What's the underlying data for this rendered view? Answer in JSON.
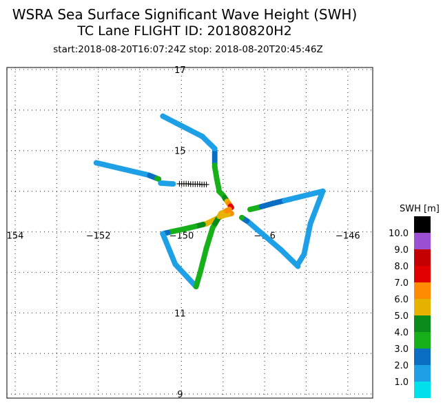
{
  "chart_data": {
    "type": "scatter",
    "title": "WSRA Sea Surface Significant Wave Height (SWH)",
    "subtitle": "TC Lane FLIGHT ID: 20180820H2",
    "time_range": "start:2018-08-20T16:07:24Z  stop: 2018-08-20T20:45:46Z",
    "xlabel": "",
    "ylabel": "",
    "xlim": [
      -154.2,
      -145.4
    ],
    "ylim": [
      8.9,
      17.05
    ],
    "grid": true,
    "x_ticks": [
      {
        "value": -154,
        "label": "154"
      },
      {
        "value": -152,
        "label": "−152"
      },
      {
        "value": -150,
        "label": "−150"
      },
      {
        "value": -148,
        "label": "−1 6"
      },
      {
        "value": -146,
        "label": "−146"
      }
    ],
    "y_ticks": [
      {
        "value": 17,
        "label": "17"
      },
      {
        "value": 15,
        "label": "15"
      },
      {
        "value": 11,
        "label": "11"
      },
      {
        "value": 9,
        "label": "9"
      }
    ],
    "colorbar": {
      "label": "SWH [m]",
      "min": 0,
      "max": 11,
      "ticks": [
        "1.0",
        "2.0",
        "3.0",
        "4.0",
        "5.0",
        "6.0",
        "7.0",
        "8.0",
        "9.0",
        "10.0"
      ],
      "colors": [
        "#00e0ea",
        "#1ea0e6",
        "#0a6ec2",
        "#18b01a",
        "#0a8c1a",
        "#e6b400",
        "#ff8c00",
        "#e00000",
        "#c40000",
        "#9a50d0",
        "#000000"
      ]
    },
    "no_data_marker": "+",
    "tracks": [
      {
        "points": [
          [
            -149.2,
            15.0
          ],
          [
            -149.2,
            14.6
          ],
          [
            -149.15,
            14.3
          ],
          [
            -149.1,
            14.05
          ]
        ],
        "values": [
          1.9,
          3.2,
          3.6,
          3.4
        ]
      },
      {
        "points": [
          [
            -150.45,
            15.85
          ],
          [
            -149.5,
            15.35
          ],
          [
            -149.2,
            15.05
          ]
        ],
        "values": [
          1.9,
          1.9,
          1.9
        ]
      },
      {
        "points": [
          [
            -149.1,
            14.0
          ],
          [
            -149.0,
            13.9
          ],
          [
            -148.9,
            13.75
          ],
          [
            -148.8,
            13.6
          ]
        ],
        "values": [
          3.4,
          3.5,
          5.2,
          7.5
        ]
      },
      {
        "points": [
          [
            -152.05,
            14.7
          ],
          [
            -150.8,
            14.4
          ],
          [
            -150.55,
            14.3
          ]
        ],
        "values": [
          1.9,
          1.9,
          3.3
        ]
      },
      {
        "points": [
          [
            -150.5,
            14.2
          ],
          [
            -150.2,
            14.18
          ]
        ],
        "values": [
          1.9,
          1.9
        ]
      },
      {
        "points": [
          [
            -148.35,
            13.55
          ],
          [
            -148.15,
            13.6
          ],
          [
            -147.8,
            13.7
          ],
          [
            -147.4,
            13.8
          ],
          [
            -146.8,
            13.95
          ],
          [
            -146.6,
            14.0
          ],
          [
            -146.9,
            13.2
          ],
          [
            -147.05,
            12.45
          ],
          [
            -147.2,
            12.2
          ]
        ],
        "values": [
          3.3,
          3.1,
          2.2,
          1.9,
          1.9,
          1.2,
          1.2,
          1.2,
          1.9
        ]
      },
      {
        "points": [
          [
            -147.2,
            12.15
          ],
          [
            -147.6,
            12.55
          ],
          [
            -148.0,
            12.9
          ],
          [
            -148.4,
            13.25
          ],
          [
            -148.55,
            13.35
          ]
        ],
        "values": [
          1.9,
          1.9,
          1.9,
          1.9,
          3.2
        ]
      },
      {
        "points": [
          [
            -148.8,
            13.45
          ],
          [
            -149.0,
            13.4
          ],
          [
            -149.4,
            13.2
          ],
          [
            -149.8,
            13.1
          ],
          [
            -150.25,
            13.0
          ],
          [
            -150.45,
            12.95
          ],
          [
            -150.15,
            12.2
          ],
          [
            -149.65,
            11.65
          ]
        ],
        "values": [
          6.2,
          5.5,
          5.4,
          3.2,
          3.4,
          1.9,
          1.9,
          1.9
        ]
      },
      {
        "points": [
          [
            -149.65,
            11.65
          ],
          [
            -149.55,
            12.0
          ],
          [
            -149.4,
            12.6
          ],
          [
            -149.25,
            13.1
          ],
          [
            -149.05,
            13.45
          ],
          [
            -148.85,
            13.55
          ]
        ],
        "values": [
          3.3,
          3.4,
          3.5,
          3.5,
          5.4,
          6.3
        ]
      }
    ],
    "nodata_segment": {
      "points": [
        [
          -150.05,
          14.2
        ],
        [
          -149.4,
          14.18
        ]
      ]
    }
  }
}
